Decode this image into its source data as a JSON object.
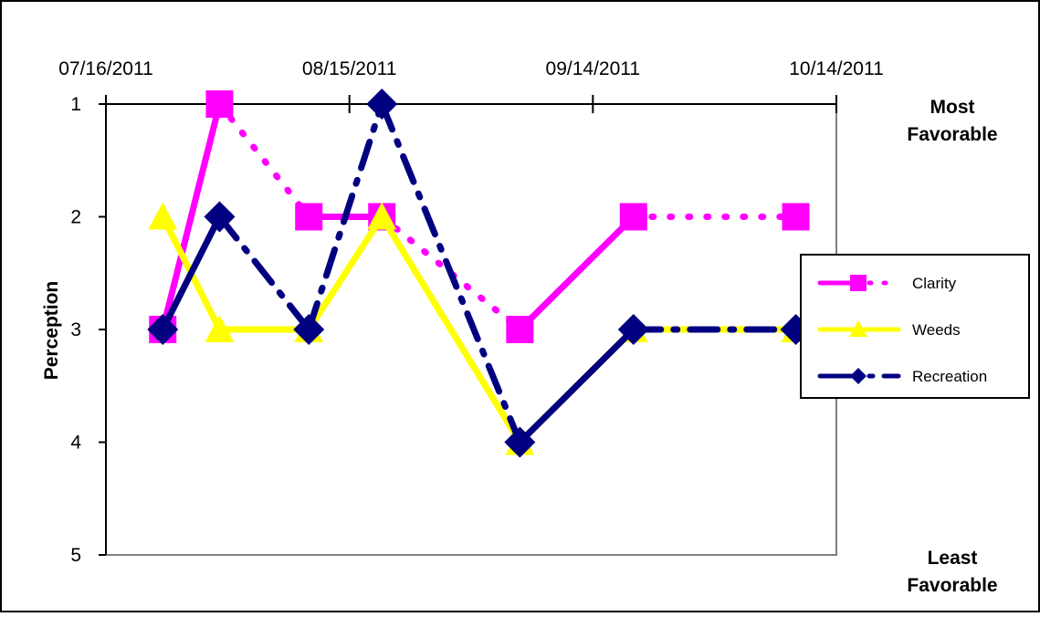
{
  "chart_data": {
    "type": "line",
    "title": "",
    "xlabel": "",
    "ylabel": "Perception",
    "x_ticks": [
      "07/16/2011",
      "08/15/2011",
      "09/14/2011",
      "10/14/2011"
    ],
    "y_ticks": [
      "1",
      "2",
      "3",
      "4",
      "5"
    ],
    "ylim": [
      5,
      1
    ],
    "y_reversed": true,
    "xlim": [
      "07/16/2011",
      "10/14/2011"
    ],
    "x_axis_position": "top",
    "grid": false,
    "legend_position": "right",
    "annotations": [
      {
        "lines": [
          "Most",
          "Favorable"
        ],
        "at_value": 1
      },
      {
        "lines": [
          "Least",
          "Favorable"
        ],
        "at_value": 5
      }
    ],
    "series": [
      {
        "name": "Clarity",
        "color": "#ff00ff",
        "marker": "square",
        "points": [
          {
            "x": "07/23/2011",
            "y": 3
          },
          {
            "x": "07/30/2011",
            "y": 1
          },
          {
            "x": "08/10/2011",
            "y": 2
          },
          {
            "x": "08/19/2011",
            "y": 2
          },
          {
            "x": "09/05/2011",
            "y": 3
          },
          {
            "x": "09/19/2011",
            "y": 2
          },
          {
            "x": "10/09/2011",
            "y": 2
          }
        ],
        "segment_dash": [
          "solid",
          "dotted",
          "solid",
          "dotted",
          "solid",
          "dotted",
          "dotted"
        ]
      },
      {
        "name": "Weeds",
        "color": "#ffff00",
        "marker": "triangle",
        "points": [
          {
            "x": "07/23/2011",
            "y": 2
          },
          {
            "x": "07/30/2011",
            "y": 3
          },
          {
            "x": "08/10/2011",
            "y": 3
          },
          {
            "x": "08/19/2011",
            "y": 2
          },
          {
            "x": "09/05/2011",
            "y": 4
          },
          {
            "x": "09/19/2011",
            "y": 3
          },
          {
            "x": "10/09/2011",
            "y": 3
          }
        ],
        "segment_dash": [
          "solid",
          "solid",
          "solid",
          "solid",
          "solid",
          "solid",
          "solid"
        ]
      },
      {
        "name": "Recreation",
        "color": "#000080",
        "marker": "diamond",
        "points": [
          {
            "x": "07/23/2011",
            "y": 3
          },
          {
            "x": "07/30/2011",
            "y": 2
          },
          {
            "x": "08/10/2011",
            "y": 3
          },
          {
            "x": "08/19/2011",
            "y": 1
          },
          {
            "x": "09/05/2011",
            "y": 4
          },
          {
            "x": "09/19/2011",
            "y": 3
          },
          {
            "x": "10/09/2011",
            "y": 3
          }
        ],
        "segment_dash": [
          "solid",
          "dashdot",
          "dashdot",
          "dashdot",
          "solid",
          "dashdot",
          "dashdot"
        ]
      }
    ]
  }
}
